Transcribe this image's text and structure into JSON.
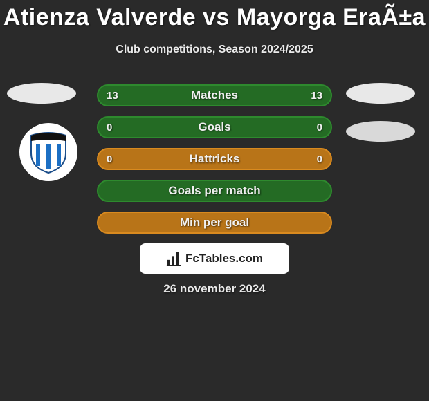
{
  "title": "Atienza Valverde vs Mayorga EraÃ±a",
  "subtitle": "Club competitions, Season 2024/2025",
  "date": "26 november 2024",
  "brand": "FcTables.com",
  "colors": {
    "green_border": "#2e8a2e",
    "green_fill": "#246b24",
    "orange_border": "#d98a1f",
    "orange_fill": "#b87418"
  },
  "rows": [
    {
      "label": "Matches",
      "left": "13",
      "right": "13",
      "style": "green",
      "show_values": true
    },
    {
      "label": "Goals",
      "left": "0",
      "right": "0",
      "style": "green",
      "show_values": true
    },
    {
      "label": "Hattricks",
      "left": "0",
      "right": "0",
      "style": "orange",
      "show_values": true
    },
    {
      "label": "Goals per match",
      "left": "",
      "right": "",
      "style": "green",
      "show_values": false
    },
    {
      "label": "Min per goal",
      "left": "",
      "right": "",
      "style": "orange",
      "show_values": false
    }
  ]
}
